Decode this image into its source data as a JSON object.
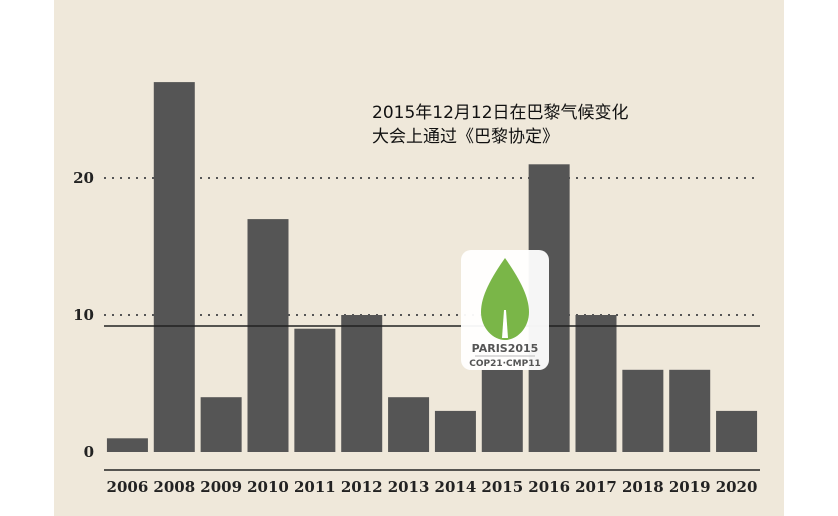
{
  "chart_data": {
    "type": "bar",
    "categories": [
      "2006",
      "2008",
      "2009",
      "2010",
      "2011",
      "2012",
      "2013",
      "2014",
      "2015",
      "2016",
      "2017",
      "2018",
      "2019",
      "2020"
    ],
    "values": [
      1,
      27,
      4,
      17,
      9,
      10,
      4,
      3,
      6,
      21,
      10,
      6,
      6,
      3
    ],
    "y_ticks": [
      0,
      10,
      20
    ],
    "ylim": [
      0,
      30
    ],
    "grid": "dotted horizontal at ticks",
    "reference_line": 9.2,
    "bar_color": "#555555",
    "background_color": "#efe8da",
    "annotation": [
      "2015年12月12日在巴黎气候变化",
      "大会上通过《巴黎协定》"
    ],
    "logo": {
      "name": "paris-2015-cop21-logo",
      "line1": "PARIS2015",
      "line2": "COP21·CMP11",
      "leaf_color": "#7ab648"
    }
  }
}
